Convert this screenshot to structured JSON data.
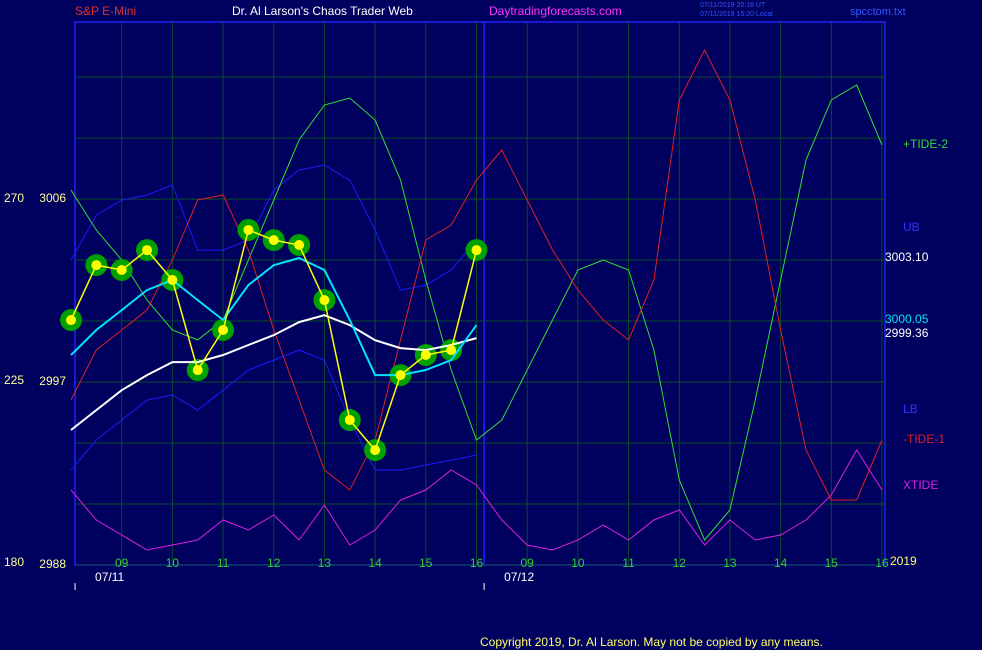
{
  "chart_data": {
    "type": "line",
    "symbol": "S&P E-Mini",
    "title": "Dr. Al Larson's Chaos Trader Web",
    "site": "Daytradingforecasts.com",
    "timestamps": [
      "07/11/2019 20:16 UT",
      "07/11/2019 15:20 Local"
    ],
    "file": "spcctom.txt",
    "copyright": "Copyright 2019, Dr. Al Larson. May not be copied by any means.",
    "year_label": "2019",
    "xlim": [
      0,
      16
    ],
    "xticks": [
      {
        "value": 1,
        "label": "09"
      },
      {
        "value": 2,
        "label": "10"
      },
      {
        "value": 3,
        "label": "11"
      },
      {
        "value": 4,
        "label": "12"
      },
      {
        "value": 5,
        "label": "13"
      },
      {
        "value": 6,
        "label": "14"
      },
      {
        "value": 7,
        "label": "15"
      },
      {
        "value": 8,
        "label": "16"
      },
      {
        "value": 9,
        "label": "09"
      },
      {
        "value": 10,
        "label": "10"
      },
      {
        "value": 11,
        "label": "11"
      },
      {
        "value": 12,
        "label": "12"
      },
      {
        "value": 13,
        "label": "13"
      },
      {
        "value": 14,
        "label": "14"
      },
      {
        "value": 15,
        "label": "15"
      },
      {
        "value": 16,
        "label": "16"
      }
    ],
    "dates": [
      {
        "value": 0.08,
        "label": "07/11"
      },
      {
        "value": 8.15,
        "label": "07/12"
      }
    ],
    "ylim": [
      2988,
      3014.71
    ],
    "yticks": [
      2988,
      2997,
      3006
    ],
    "ygrid": [
      2991,
      2994,
      3000,
      3003,
      3009,
      3012
    ],
    "y2lim": [
      179.5,
      313.77
    ],
    "y2ticks": [
      180,
      225,
      270
    ],
    "grid": true,
    "price_labels": [
      {
        "value": 3003.1,
        "label": "3003.10",
        "color": "#ffffff"
      },
      {
        "value": 3000.05,
        "label": "3000.05",
        "color": "#00e5ff"
      },
      {
        "value": 2999.36,
        "label": "2999.36",
        "color": "#ffffff"
      }
    ],
    "x": [
      0,
      0.5,
      1,
      1.5,
      2,
      2.5,
      3,
      3.5,
      4,
      4.5,
      5,
      5.5,
      6,
      6.5,
      7,
      7.5,
      8,
      8.5,
      9,
      9.5,
      10,
      10.5,
      11,
      11.5,
      12,
      12.5,
      13,
      13.5,
      14,
      14.5,
      15,
      15.5,
      16
    ],
    "series": [
      {
        "name": "UB",
        "color": "#1a1aff",
        "label_color": "#3333ff",
        "values": [
          3003.0,
          3005.21,
          3005.95,
          3006.2,
          3006.69,
          3003.49,
          3003.49,
          3003.98,
          3006.44,
          3007.43,
          3007.67,
          3006.93,
          3004.48,
          3001.52,
          3001.77,
          3002.51,
          3003.98,
          null,
          null,
          null,
          null,
          null,
          null,
          null,
          null,
          null,
          null,
          null,
          null,
          null,
          null,
          null,
          null
        ]
      },
      {
        "name": "LB",
        "color": "#1a1aff",
        "label_color": "#3333ff",
        "values": [
          2992.67,
          2994.15,
          2995.13,
          2996.11,
          2996.36,
          2995.62,
          2996.6,
          2997.59,
          2998.08,
          2998.57,
          2998.08,
          2995.13,
          2992.67,
          2992.67,
          2992.92,
          2993.16,
          2993.41,
          null,
          null,
          null,
          null,
          null,
          null,
          null,
          null,
          null,
          null,
          null,
          null,
          null,
          null,
          null,
          null
        ]
      },
      {
        "name": "+TIDE-2",
        "color": "#33dd33",
        "axis": "y2",
        "values": [
          272.23,
          262.34,
          254.93,
          245.04,
          237.62,
          235.15,
          240.08,
          254.93,
          269.75,
          284.59,
          293.24,
          294.97,
          289.53,
          274.7,
          249.97,
          227.71,
          210.41,
          215.35,
          227.71,
          240.08,
          252.44,
          254.93,
          252.44,
          232.66,
          200.51,
          185.68,
          193.1,
          220.3,
          249.97,
          279.64,
          294.48,
          298.19,
          283.35
        ]
      },
      {
        "name": "-TIDE-1",
        "color": "#e02020",
        "axis": "y2",
        "values": [
          220.3,
          232.66,
          237.62,
          242.55,
          254.93,
          269.75,
          270.99,
          257.39,
          237.62,
          220.3,
          202.99,
          198.04,
          210.41,
          235.13,
          259.86,
          263.57,
          274.7,
          282.12,
          269.75,
          257.39,
          247.5,
          240.08,
          235.13,
          249.97,
          294.48,
          306.84,
          294.48,
          269.75,
          237.62,
          207.93,
          195.57,
          195.57,
          210.41
        ]
      },
      {
        "name": "XTIDE",
        "color": "#e020e0",
        "axis": "y2",
        "values": [
          198.04,
          190.62,
          186.91,
          183.21,
          184.44,
          185.68,
          190.62,
          188.15,
          191.86,
          185.68,
          194.33,
          184.44,
          188.15,
          195.57,
          198.04,
          202.99,
          199.28,
          190.62,
          184.44,
          183.21,
          185.68,
          189.39,
          185.68,
          190.62,
          193.1,
          184.44,
          190.62,
          185.68,
          186.91,
          190.62,
          196.81,
          207.93,
          198.04
        ]
      }
    ],
    "averages": [
      {
        "color": "#ffffff",
        "values": [
          2994.64,
          2995.62,
          2996.6,
          2997.34,
          2997.98,
          2997.98,
          2998.33,
          2998.82,
          2999.31,
          2999.95,
          3000.29,
          2999.8,
          2999.06,
          2998.67,
          2998.57,
          2998.82,
          2999.16,
          null,
          null,
          null,
          null,
          null,
          null,
          null,
          null,
          null,
          null,
          null,
          null,
          null,
          null,
          null,
          null
        ]
      },
      {
        "color": "#00e5ff",
        "values": [
          2998.33,
          2999.56,
          3000.54,
          3001.52,
          3002.02,
          3001.03,
          3000.05,
          3001.77,
          3002.75,
          3003.1,
          3002.51,
          3000.05,
          2997.34,
          2997.34,
          2997.59,
          2998.08,
          2999.8,
          null,
          null,
          null,
          null,
          null,
          null,
          null,
          null,
          null,
          null,
          null,
          null,
          null,
          null,
          null,
          null
        ]
      }
    ],
    "price": {
      "color": "#ffff00",
      "band_color": "#00a000",
      "values": [
        3000.05,
        3002.75,
        3002.51,
        3003.49,
        3002.02,
        2997.59,
        2999.56,
        3004.48,
        3003.98,
        3003.74,
        3001.03,
        2995.13,
        2993.65,
        2997.34,
        2998.33,
        2998.57,
        3003.49,
        null,
        null,
        null,
        null,
        null,
        null,
        null,
        null,
        null,
        null,
        null,
        null,
        null,
        null,
        null,
        null
      ]
    }
  }
}
